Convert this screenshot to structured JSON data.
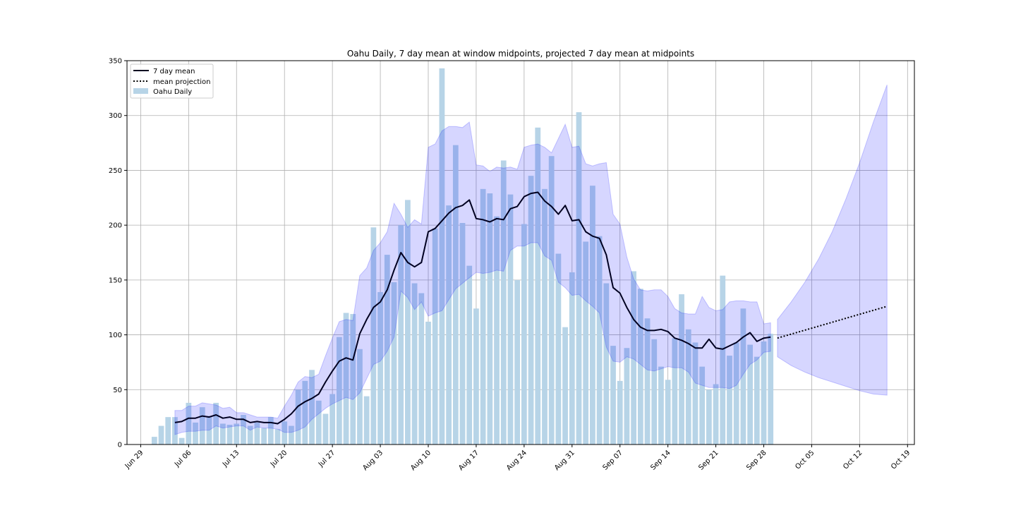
{
  "chart_data": {
    "type": "bar",
    "title": "Oahu Daily, 7 day mean at window midpoints, projected 7 day mean at midpoints",
    "xlabel": "",
    "ylabel": "",
    "x_start": "2020-06-30",
    "xlim": [
      "2020-06-27",
      "2020-10-20"
    ],
    "ylim": [
      0,
      350
    ],
    "yticks": [
      0,
      50,
      100,
      150,
      200,
      250,
      300,
      350
    ],
    "xticks": [
      {
        "date": "2020-06-29",
        "label": "Jun 29"
      },
      {
        "date": "2020-07-06",
        "label": "Jul 06"
      },
      {
        "date": "2020-07-13",
        "label": "Jul 13"
      },
      {
        "date": "2020-07-20",
        "label": "Jul 20"
      },
      {
        "date": "2020-07-27",
        "label": "Jul 27"
      },
      {
        "date": "2020-08-03",
        "label": "Aug 03"
      },
      {
        "date": "2020-08-10",
        "label": "Aug 10"
      },
      {
        "date": "2020-08-17",
        "label": "Aug 17"
      },
      {
        "date": "2020-08-24",
        "label": "Aug 24"
      },
      {
        "date": "2020-08-31",
        "label": "Aug 31"
      },
      {
        "date": "2020-09-07",
        "label": "Sep 07"
      },
      {
        "date": "2020-09-14",
        "label": "Sep 14"
      },
      {
        "date": "2020-09-21",
        "label": "Sep 21"
      },
      {
        "date": "2020-09-28",
        "label": "Sep 28"
      },
      {
        "date": "2020-10-05",
        "label": "Oct 05"
      },
      {
        "date": "2020-10-12",
        "label": "Oct 12"
      },
      {
        "date": "2020-10-19",
        "label": "Oct 19"
      }
    ],
    "grid": true,
    "legend_placement": "top-left",
    "legend": [
      {
        "label": "7 day mean",
        "style": "solid-line"
      },
      {
        "label": "mean projection",
        "style": "dotted-line"
      },
      {
        "label": "Oahu Daily",
        "style": "bar"
      }
    ],
    "colors": {
      "bars": "#b7d4e7",
      "band_fill": "#d6d6fd",
      "band_edge": "#a6a6f5",
      "mean_line": "#000020",
      "projection_line": "#000000",
      "grid": "#b0b0b0"
    },
    "series": [
      {
        "name": "Oahu Daily",
        "type": "bar",
        "values": [
          0,
          7,
          17,
          25,
          25,
          6,
          38,
          20,
          34,
          26,
          38,
          19,
          18,
          19,
          27,
          17,
          20,
          15,
          25,
          14,
          21,
          17,
          50,
          58,
          68,
          40,
          28,
          46,
          98,
          120,
          119,
          87,
          44,
          198,
          139,
          173,
          148,
          200,
          223,
          147,
          138,
          112,
          197,
          343,
          218,
          273,
          202,
          163,
          124,
          233,
          229,
          208,
          259,
          228,
          150,
          201,
          245,
          289,
          233,
          263,
          174,
          107,
          157,
          303,
          185,
          236,
          190,
          147,
          90,
          58,
          88,
          158,
          142,
          115,
          96,
          71,
          59,
          97,
          137,
          105,
          93,
          71,
          50,
          55,
          154,
          81,
          93,
          124,
          91,
          80,
          94,
          101
        ]
      },
      {
        "name": "7 day mean",
        "type": "line",
        "x": [
          "2020-07-04",
          "2020-07-05",
          "2020-07-06",
          "2020-07-07",
          "2020-07-08",
          "2020-07-09",
          "2020-07-10",
          "2020-07-11",
          "2020-07-12",
          "2020-07-13",
          "2020-07-14",
          "2020-07-15",
          "2020-07-16",
          "2020-07-17",
          "2020-07-18",
          "2020-07-19",
          "2020-07-20",
          "2020-07-21",
          "2020-07-22",
          "2020-07-23",
          "2020-07-24",
          "2020-07-25",
          "2020-07-26",
          "2020-07-27",
          "2020-07-28",
          "2020-07-29",
          "2020-07-30",
          "2020-07-31",
          "2020-08-01",
          "2020-08-02",
          "2020-08-03",
          "2020-08-04",
          "2020-08-05",
          "2020-08-06",
          "2020-08-07",
          "2020-08-08",
          "2020-08-09",
          "2020-08-10",
          "2020-08-11",
          "2020-08-12",
          "2020-08-13",
          "2020-08-14",
          "2020-08-15",
          "2020-08-16",
          "2020-08-17",
          "2020-08-18",
          "2020-08-19",
          "2020-08-20",
          "2020-08-21",
          "2020-08-22",
          "2020-08-23",
          "2020-08-24",
          "2020-08-25",
          "2020-08-26",
          "2020-08-27",
          "2020-08-28",
          "2020-08-29",
          "2020-08-30",
          "2020-08-31",
          "2020-09-01",
          "2020-09-02",
          "2020-09-03",
          "2020-09-04",
          "2020-09-05",
          "2020-09-06",
          "2020-09-07",
          "2020-09-08",
          "2020-09-09",
          "2020-09-10",
          "2020-09-11",
          "2020-09-12",
          "2020-09-13",
          "2020-09-14",
          "2020-09-15",
          "2020-09-16",
          "2020-09-17",
          "2020-09-18",
          "2020-09-19",
          "2020-09-20",
          "2020-09-21",
          "2020-09-22",
          "2020-09-23",
          "2020-09-24",
          "2020-09-25",
          "2020-09-26",
          "2020-09-27",
          "2020-09-28",
          "2020-09-29"
        ],
        "values": [
          20,
          21,
          24,
          24,
          26,
          25,
          27,
          24,
          25,
          23,
          23,
          20,
          21,
          20,
          20,
          19,
          23,
          28,
          35,
          39,
          42,
          46,
          57,
          67,
          76,
          79,
          77,
          101,
          114,
          125,
          130,
          141,
          159,
          175,
          166,
          162,
          166,
          194,
          197,
          204,
          211,
          216,
          218,
          223,
          206,
          205,
          203,
          206,
          205,
          215,
          217,
          226,
          229,
          230,
          222,
          217,
          210,
          218,
          204,
          205,
          194,
          190,
          188,
          173,
          143,
          138,
          125,
          114,
          107,
          104,
          104,
          105,
          103,
          97,
          95,
          92,
          88,
          88,
          96,
          88,
          87,
          90,
          93,
          98,
          102,
          94,
          97,
          98
        ]
      },
      {
        "name": "band upper",
        "type": "band",
        "x": [
          "2020-07-04",
          "2020-07-05",
          "2020-07-06",
          "2020-07-07",
          "2020-07-08",
          "2020-07-09",
          "2020-07-10",
          "2020-07-11",
          "2020-07-12",
          "2020-07-13",
          "2020-07-14",
          "2020-07-15",
          "2020-07-16",
          "2020-07-17",
          "2020-07-18",
          "2020-07-19",
          "2020-07-20",
          "2020-07-21",
          "2020-07-22",
          "2020-07-23",
          "2020-07-24",
          "2020-07-25",
          "2020-07-26",
          "2020-07-27",
          "2020-07-28",
          "2020-07-29",
          "2020-07-30",
          "2020-07-31",
          "2020-08-01",
          "2020-08-02",
          "2020-08-03",
          "2020-08-04",
          "2020-08-05",
          "2020-08-06",
          "2020-08-07",
          "2020-08-08",
          "2020-08-09",
          "2020-08-10",
          "2020-08-11",
          "2020-08-12",
          "2020-08-13",
          "2020-08-14",
          "2020-08-15",
          "2020-08-16",
          "2020-08-17",
          "2020-08-18",
          "2020-08-19",
          "2020-08-20",
          "2020-08-21",
          "2020-08-22",
          "2020-08-23",
          "2020-08-24",
          "2020-08-25",
          "2020-08-26",
          "2020-08-27",
          "2020-08-28",
          "2020-08-29",
          "2020-08-30",
          "2020-08-31",
          "2020-09-01",
          "2020-09-02",
          "2020-09-03",
          "2020-09-04",
          "2020-09-05",
          "2020-09-06",
          "2020-09-07",
          "2020-09-08",
          "2020-09-09",
          "2020-09-10",
          "2020-09-11",
          "2020-09-12",
          "2020-09-13",
          "2020-09-14",
          "2020-09-15",
          "2020-09-16",
          "2020-09-17",
          "2020-09-18",
          "2020-09-19",
          "2020-09-20",
          "2020-09-21",
          "2020-09-22",
          "2020-09-23",
          "2020-09-24",
          "2020-09-25",
          "2020-09-26",
          "2020-09-27",
          "2020-09-28",
          "2020-09-29"
        ],
        "values": [
          31,
          31,
          35,
          35,
          38,
          37,
          36,
          33,
          34,
          29,
          29,
          27,
          25,
          25,
          25,
          24,
          35,
          45,
          57,
          62,
          61,
          64,
          81,
          97,
          112,
          114,
          113,
          154,
          161,
          177,
          184,
          194,
          220,
          210,
          198,
          205,
          201,
          271,
          274,
          286,
          290,
          290,
          289,
          294,
          255,
          254,
          249,
          253,
          252,
          253,
          251,
          271,
          273,
          274,
          271,
          266,
          279,
          292,
          271,
          272,
          256,
          254,
          256,
          257,
          210,
          201,
          171,
          151,
          141,
          140,
          141,
          141,
          135,
          124,
          120,
          119,
          119,
          135,
          125,
          122,
          123,
          130,
          131,
          131,
          130,
          130,
          110,
          111
        ]
      },
      {
        "name": "band lower",
        "type": "band",
        "x": [
          "2020-07-04",
          "2020-07-05",
          "2020-07-06",
          "2020-07-07",
          "2020-07-08",
          "2020-07-09",
          "2020-07-10",
          "2020-07-11",
          "2020-07-12",
          "2020-07-13",
          "2020-07-14",
          "2020-07-15",
          "2020-07-16",
          "2020-07-17",
          "2020-07-18",
          "2020-07-19",
          "2020-07-20",
          "2020-07-21",
          "2020-07-22",
          "2020-07-23",
          "2020-07-24",
          "2020-07-25",
          "2020-07-26",
          "2020-07-27",
          "2020-07-28",
          "2020-07-29",
          "2020-07-30",
          "2020-07-31",
          "2020-08-01",
          "2020-08-02",
          "2020-08-03",
          "2020-08-04",
          "2020-08-05",
          "2020-08-06",
          "2020-08-07",
          "2020-08-08",
          "2020-08-09",
          "2020-08-10",
          "2020-08-11",
          "2020-08-12",
          "2020-08-13",
          "2020-08-14",
          "2020-08-15",
          "2020-08-16",
          "2020-08-17",
          "2020-08-18",
          "2020-08-19",
          "2020-08-20",
          "2020-08-21",
          "2020-08-22",
          "2020-08-23",
          "2020-08-24",
          "2020-08-25",
          "2020-08-26",
          "2020-08-27",
          "2020-08-28",
          "2020-08-29",
          "2020-08-30",
          "2020-08-31",
          "2020-09-01",
          "2020-09-02",
          "2020-09-03",
          "2020-09-04",
          "2020-09-05",
          "2020-09-06",
          "2020-09-07",
          "2020-09-08",
          "2020-09-09",
          "2020-09-10",
          "2020-09-11",
          "2020-09-12",
          "2020-09-13",
          "2020-09-14",
          "2020-09-15",
          "2020-09-16",
          "2020-09-17",
          "2020-09-18",
          "2020-09-19",
          "2020-09-20",
          "2020-09-21",
          "2020-09-22",
          "2020-09-23",
          "2020-09-24",
          "2020-09-25",
          "2020-09-26",
          "2020-09-27",
          "2020-09-28",
          "2020-09-29"
        ],
        "values": [
          9,
          11,
          12,
          12,
          13,
          13,
          17,
          15,
          16,
          17,
          17,
          13,
          16,
          15,
          15,
          14,
          11,
          11,
          13,
          16,
          23,
          28,
          33,
          37,
          40,
          43,
          41,
          47,
          60,
          73,
          76,
          85,
          98,
          140,
          134,
          123,
          130,
          117,
          120,
          122,
          132,
          142,
          147,
          152,
          157,
          156,
          157,
          159,
          158,
          177,
          181,
          181,
          184,
          184,
          172,
          168,
          148,
          143,
          136,
          137,
          131,
          126,
          120,
          89,
          76,
          75,
          80,
          78,
          73,
          68,
          67,
          69,
          71,
          70,
          70,
          66,
          56,
          54,
          52,
          52,
          52,
          51,
          54,
          64,
          73,
          77,
          84,
          85
        ]
      },
      {
        "name": "mean projection",
        "type": "line",
        "style": "dotted",
        "x": [
          "2020-09-30",
          "2020-10-16"
        ],
        "values": [
          97,
          126
        ]
      },
      {
        "name": "projection band",
        "type": "band",
        "x": [
          "2020-09-30",
          "2020-10-02",
          "2020-10-04",
          "2020-10-06",
          "2020-10-08",
          "2020-10-10",
          "2020-10-12",
          "2020-10-14",
          "2020-10-16"
        ],
        "upper": [
          114,
          130,
          148,
          169,
          194,
          224,
          257,
          294,
          328
        ],
        "lower": [
          80,
          72,
          66,
          61,
          57,
          53,
          49,
          46,
          45
        ]
      }
    ]
  }
}
